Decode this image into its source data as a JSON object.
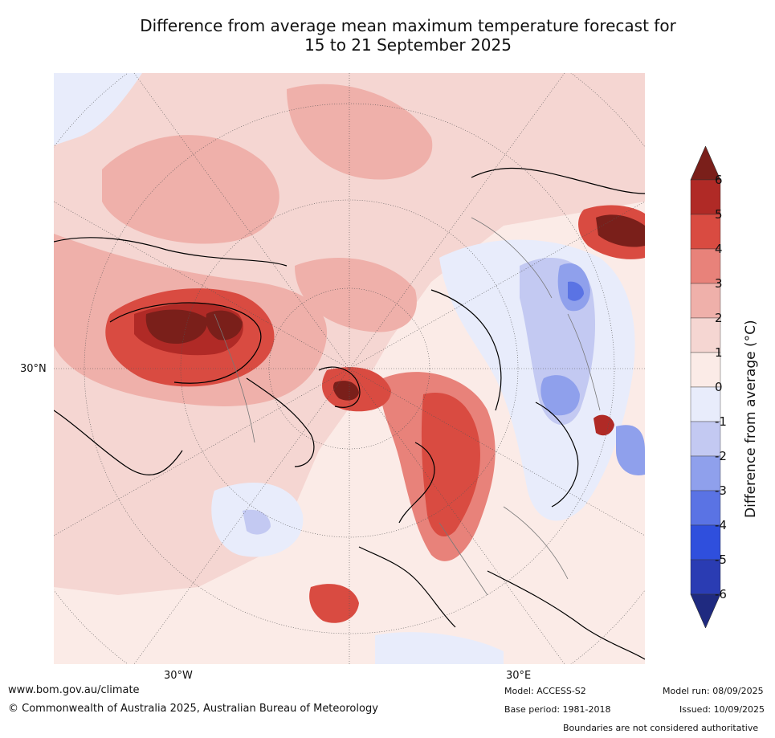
{
  "title_line1": "Difference from average mean maximum temperature forecast for",
  "title_line2": "15 to 21 September 2025",
  "map": {
    "lat_labels": [
      "30°N"
    ],
    "lon_labels": [
      "30°W",
      "30°E"
    ]
  },
  "colorbar": {
    "label": "Difference from average (°C)",
    "ticks": [
      "6",
      "5",
      "4",
      "3",
      "2",
      "1",
      "0",
      "-1",
      "-2",
      "-3",
      "-4",
      "-5",
      "-6"
    ],
    "colors": [
      "#b02a26",
      "#d94b41",
      "#e8827a",
      "#efb0aa",
      "#f5d6d2",
      "#fbebe7",
      "#e8ecfb",
      "#c3c9f2",
      "#8fa0ec",
      "#5a73e4",
      "#2f4fdd",
      "#2a3cb3",
      "#1f2a80"
    ],
    "over_color": "#7a1f1a",
    "under_color": "#1f2a80"
  },
  "footer": {
    "website": "www.bom.gov.au/climate",
    "copyright": "© Commonwealth of Australia 2025, Australian Bureau of Meteorology",
    "model": "Model: ACCESS-S2",
    "base_period": "Base period: 1981-2018",
    "model_run": "Model run: 08/09/2025",
    "issued": "Issued: 10/09/2025",
    "disclaimer": "Boundaries are not considered authoritative"
  }
}
